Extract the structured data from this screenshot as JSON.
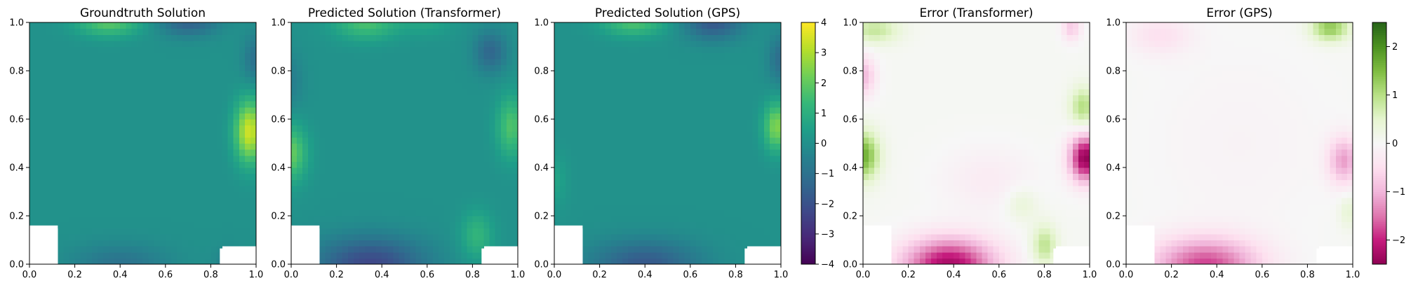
{
  "chart_data": [
    {
      "type": "heatmap",
      "title": "Groundtruth Solution",
      "field": "solution",
      "colormap": "viridis",
      "xlim": [
        0,
        1
      ],
      "ylim": [
        0,
        1
      ],
      "xticks": [
        "0.0",
        "0.2",
        "0.4",
        "0.6",
        "0.8",
        "1.0"
      ],
      "yticks": [
        "0.0",
        "0.2",
        "0.4",
        "0.6",
        "0.8",
        "1.0"
      ],
      "grid": false
    },
    {
      "type": "heatmap",
      "title": "Predicted Solution (Transformer)",
      "field": "solution",
      "colormap": "viridis",
      "xlim": [
        0,
        1
      ],
      "ylim": [
        0,
        1
      ],
      "xticks": [
        "0.0",
        "0.2",
        "0.4",
        "0.6",
        "0.8",
        "1.0"
      ],
      "yticks": [
        "0.0",
        "0.2",
        "0.4",
        "0.6",
        "0.8",
        "1.0"
      ],
      "grid": false
    },
    {
      "type": "heatmap",
      "title": "Predicted Solution (GPS)",
      "field": "solution",
      "colormap": "viridis",
      "xlim": [
        0,
        1
      ],
      "ylim": [
        0,
        1
      ],
      "xticks": [
        "0.0",
        "0.2",
        "0.4",
        "0.6",
        "0.8",
        "1.0"
      ],
      "yticks": [
        "0.0",
        "0.2",
        "0.4",
        "0.6",
        "0.8",
        "1.0"
      ],
      "grid": false
    },
    {
      "type": "heatmap",
      "title": "Error (Transformer)",
      "field": "error",
      "colormap": "PiYG",
      "xlim": [
        0,
        1
      ],
      "ylim": [
        0,
        1
      ],
      "xticks": [
        "0.0",
        "0.2",
        "0.4",
        "0.6",
        "0.8",
        "1.0"
      ],
      "yticks": [
        "0.0",
        "0.2",
        "0.4",
        "0.6",
        "0.8",
        "1.0"
      ],
      "grid": false
    },
    {
      "type": "heatmap",
      "title": "Error (GPS)",
      "field": "error",
      "colormap": "PiYG",
      "xlim": [
        0,
        1
      ],
      "ylim": [
        0,
        1
      ],
      "xticks": [
        "0.0",
        "0.2",
        "0.4",
        "0.6",
        "0.8",
        "1.0"
      ],
      "yticks": [
        "0.0",
        "0.2",
        "0.4",
        "0.6",
        "0.8",
        "1.0"
      ],
      "grid": false
    }
  ],
  "colorbars": [
    {
      "colormap": "viridis",
      "range": [
        -4,
        4
      ],
      "ticks": [
        -4,
        -3,
        -2,
        -1,
        0,
        1,
        2,
        3,
        4
      ],
      "tick_labels": [
        "−4",
        "−3",
        "−2",
        "−1",
        "0",
        "1",
        "2",
        "3",
        "4"
      ]
    },
    {
      "colormap": "PiYG",
      "range": [
        -2.5,
        2.5
      ],
      "ticks": [
        -2,
        -1,
        0,
        1,
        2
      ],
      "tick_labels": [
        "−2",
        "−1",
        "0",
        "1",
        "2"
      ]
    }
  ],
  "masked_regions": [
    {
      "x": [
        0.0,
        0.125
      ],
      "y": [
        0.0,
        0.16
      ]
    },
    {
      "x": [
        0.84,
        1.0
      ],
      "y": [
        0.0,
        0.065
      ]
    }
  ],
  "colors": {
    "viridis": [
      "#440154",
      "#482878",
      "#3e4989",
      "#31688e",
      "#26828e",
      "#1f9e89",
      "#35b779",
      "#6ece58",
      "#b5de2b",
      "#fde725"
    ],
    "PiYG": [
      "#8e0152",
      "#c51b7d",
      "#de77ae",
      "#f1b6da",
      "#fde0ef",
      "#f7f7f7",
      "#e6f5d0",
      "#b8e186",
      "#7fbc41",
      "#4d9221",
      "#276419"
    ]
  }
}
